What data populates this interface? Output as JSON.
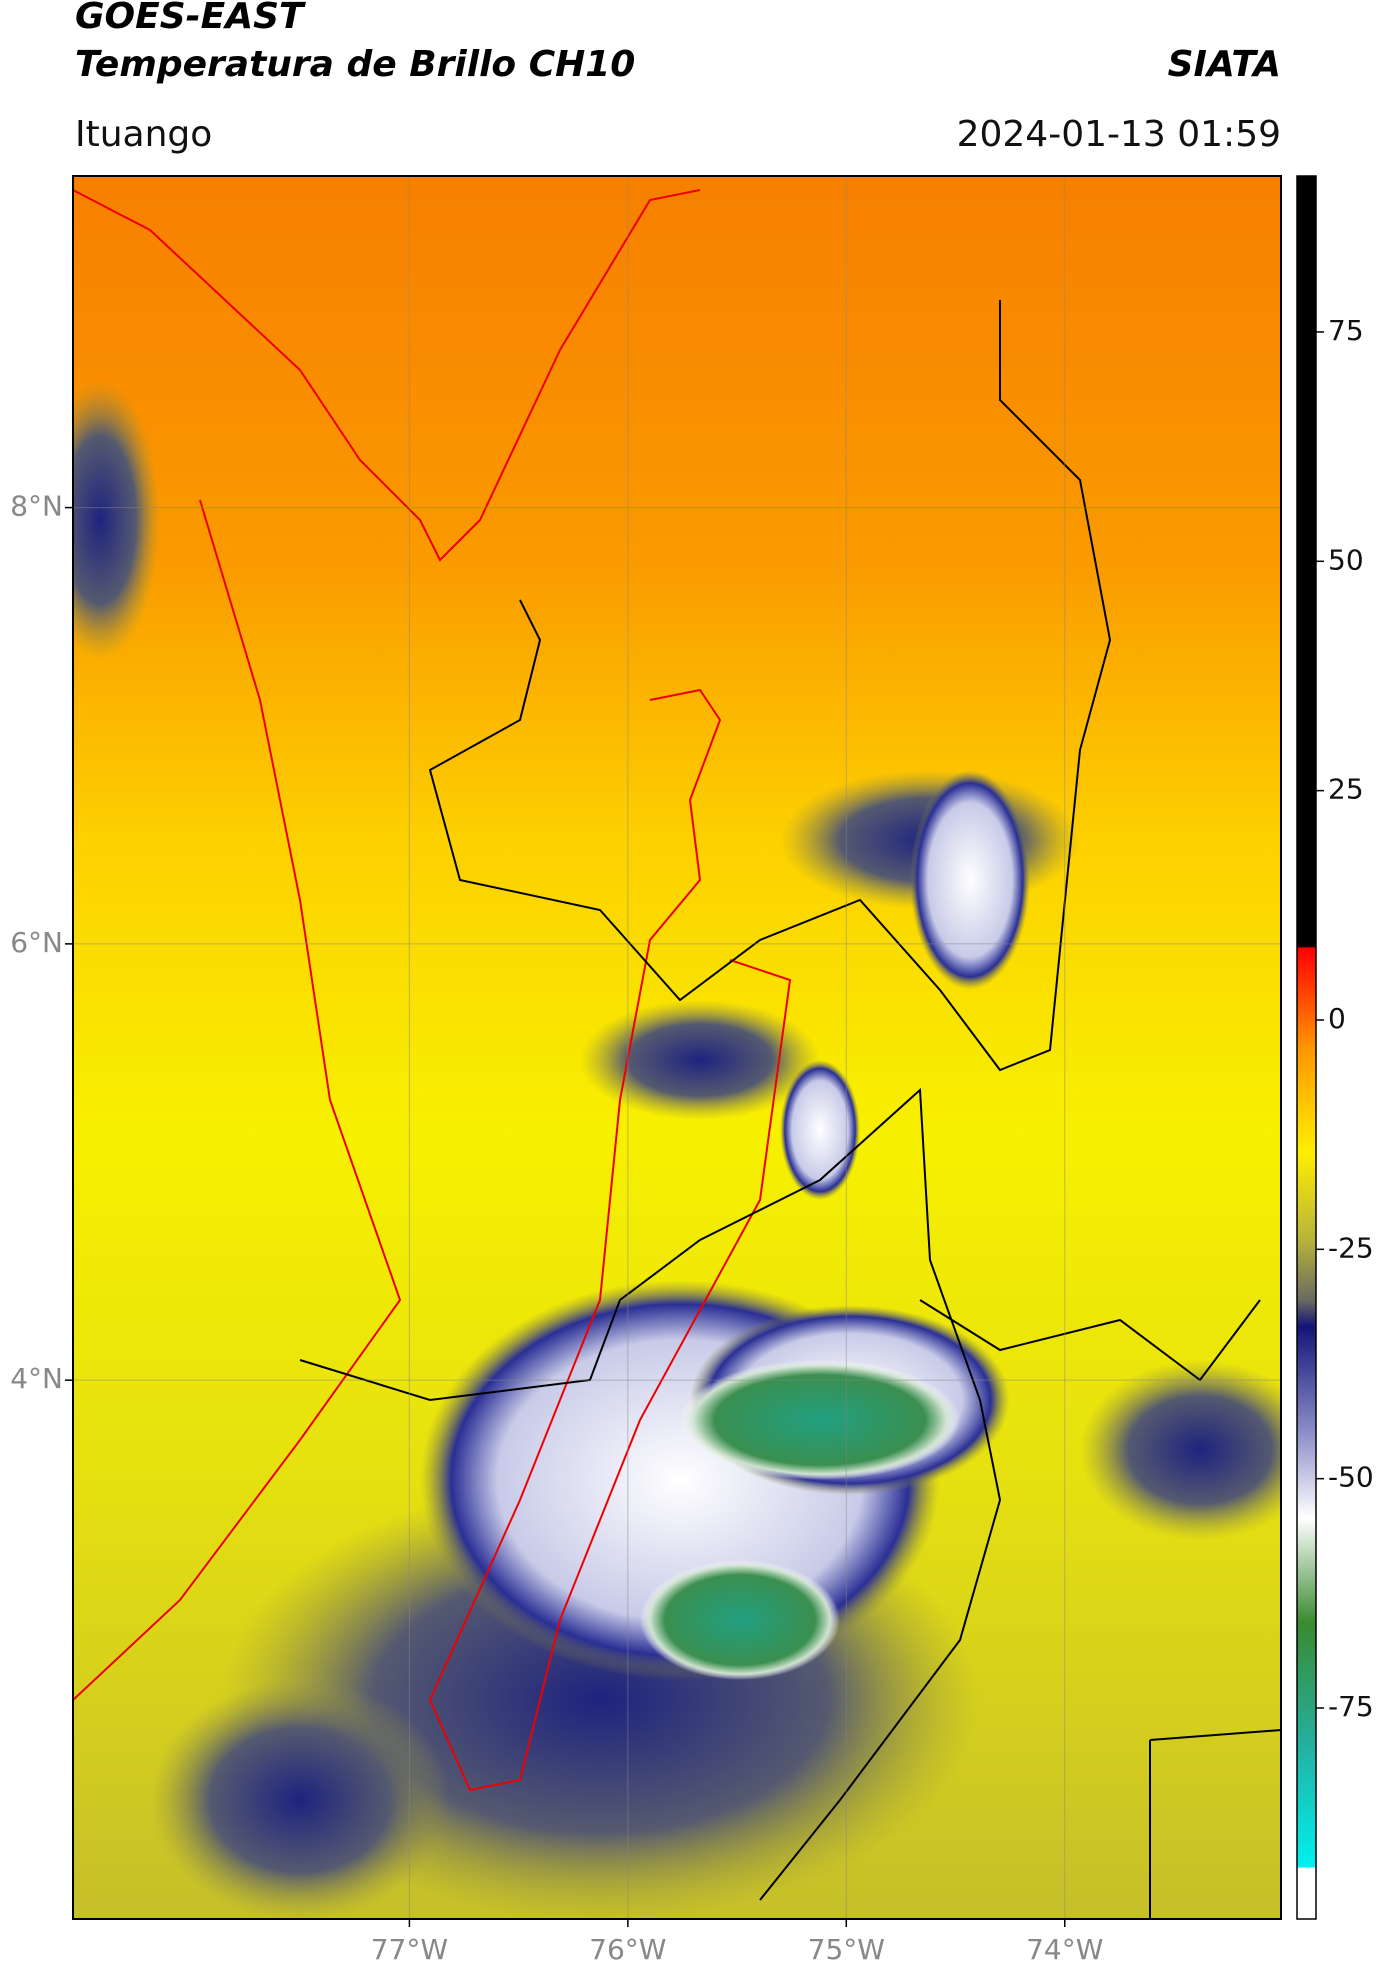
{
  "header": {
    "title_lines": [
      "GOES-EAST",
      "Temperatura de Brillo CH10"
    ],
    "brand": "SIATA",
    "location": "Ituango",
    "timestamp": "2024-01-13 01:59"
  },
  "map": {
    "xlim": [
      -78.54,
      -73.01
    ],
    "ylim": [
      1.53,
      9.52
    ],
    "xticks": [
      {
        "value": -77,
        "label": "77°W"
      },
      {
        "value": -76,
        "label": "76°W"
      },
      {
        "value": -75,
        "label": "75°W"
      },
      {
        "value": -74,
        "label": "74°W"
      }
    ],
    "yticks": [
      {
        "value": 8,
        "label": "8°N"
      },
      {
        "value": 6,
        "label": "6°N"
      },
      {
        "value": 4,
        "label": "4°N"
      }
    ],
    "grid": true
  },
  "colorbar": {
    "lim": [
      -98,
      92
    ],
    "ticks": [
      75,
      50,
      25,
      0,
      -25,
      -50,
      -75
    ]
  }
}
